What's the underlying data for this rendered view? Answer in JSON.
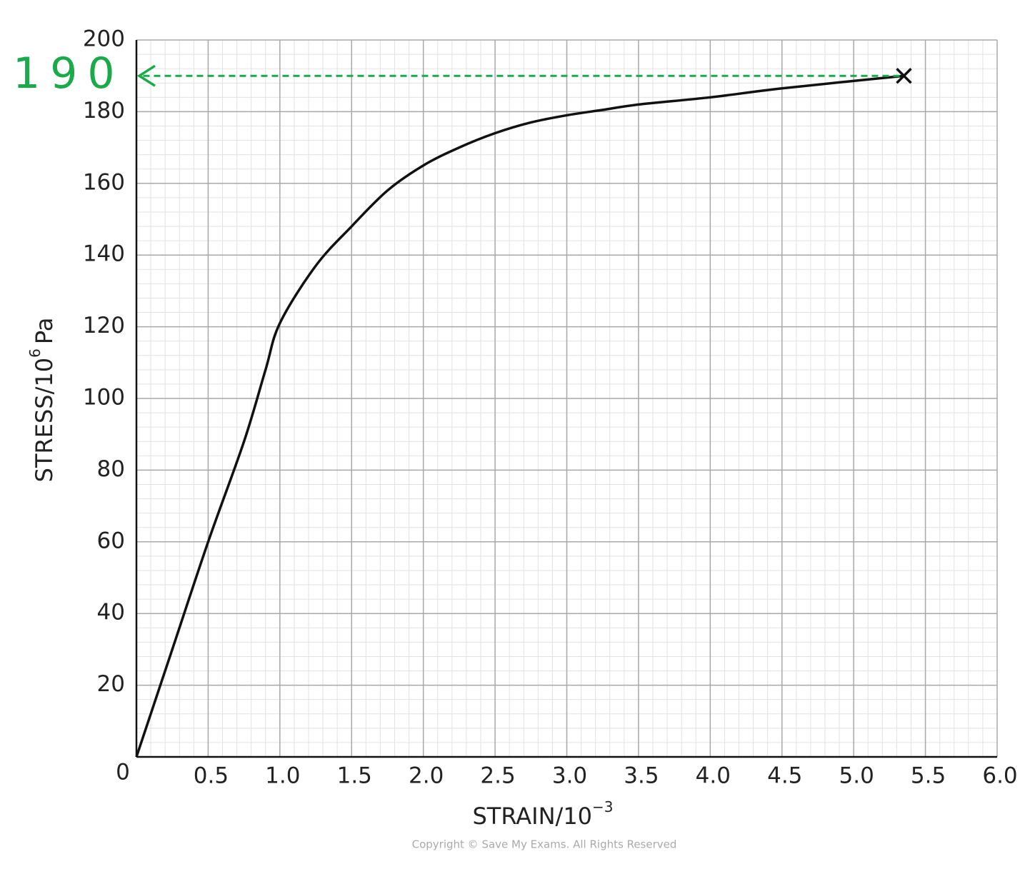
{
  "chart_data": {
    "type": "line",
    "xlabel": {
      "text": "STRAIN/10",
      "sup": "−3"
    },
    "ylabel": {
      "text": "STRESS/10",
      "sup": "6",
      "unit": "Pa"
    },
    "x": [
      0,
      0.25,
      0.5,
      0.75,
      0.9,
      1.0,
      1.25,
      1.5,
      1.75,
      2.0,
      2.25,
      2.5,
      2.75,
      3.0,
      3.25,
      3.5,
      4.0,
      4.5,
      5.35
    ],
    "series": [
      {
        "name": "stress",
        "color": "#111111",
        "values": [
          0,
          30,
          60,
          88,
          108,
          121,
          137,
          148,
          158,
          165,
          170,
          174,
          177,
          179,
          180.5,
          182,
          184,
          186.5,
          190
        ]
      }
    ],
    "xlim": [
      0,
      6
    ],
    "ylim": [
      0,
      200
    ],
    "xticks": [
      0,
      0.5,
      {
        "value": 1,
        "label": "1.0"
      },
      1.5,
      {
        "value": 2,
        "label": "2.0"
      },
      2.5,
      {
        "value": 3,
        "label": "3.0"
      },
      3.5,
      {
        "value": 4,
        "label": "4.0"
      },
      4.5,
      {
        "value": 5,
        "label": "5.0"
      },
      5.5,
      {
        "value": 6,
        "label": "6.0"
      }
    ],
    "yticks": [
      20,
      40,
      60,
      80,
      100,
      120,
      140,
      160,
      180,
      200
    ],
    "grid": true,
    "annotation": {
      "text": "190",
      "value": 190,
      "color": "#1aaa4a"
    },
    "footer": "Copyright © Save My Exams. All Rights Reserved"
  }
}
